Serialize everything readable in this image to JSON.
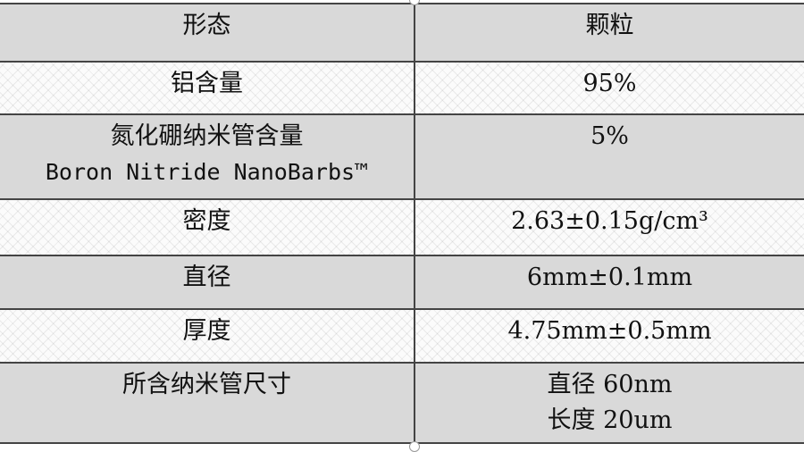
{
  "table": {
    "rows": [
      {
        "label": [
          "形态"
        ],
        "value": [
          "颗粒"
        ]
      },
      {
        "label": [
          "铝含量"
        ],
        "value": [
          "95%"
        ]
      },
      {
        "label": [
          "氮化硼纳米管含量",
          "Boron Nitride NanoBarbs™"
        ],
        "value": [
          "5%"
        ]
      },
      {
        "label": [
          "密度"
        ],
        "value": [
          "2.63±0.15g/cm³"
        ]
      },
      {
        "label": [
          "直径"
        ],
        "value": [
          "6mm±0.1mm"
        ]
      },
      {
        "label": [
          "厚度"
        ],
        "value": [
          "4.75mm±0.5mm"
        ]
      },
      {
        "label": [
          "所含纳米管尺寸"
        ],
        "value": [
          "直径 60nm",
          "长度 20um"
        ]
      }
    ]
  },
  "colors": {
    "shaded_row": "#d9d9d9",
    "border": "#444444"
  }
}
